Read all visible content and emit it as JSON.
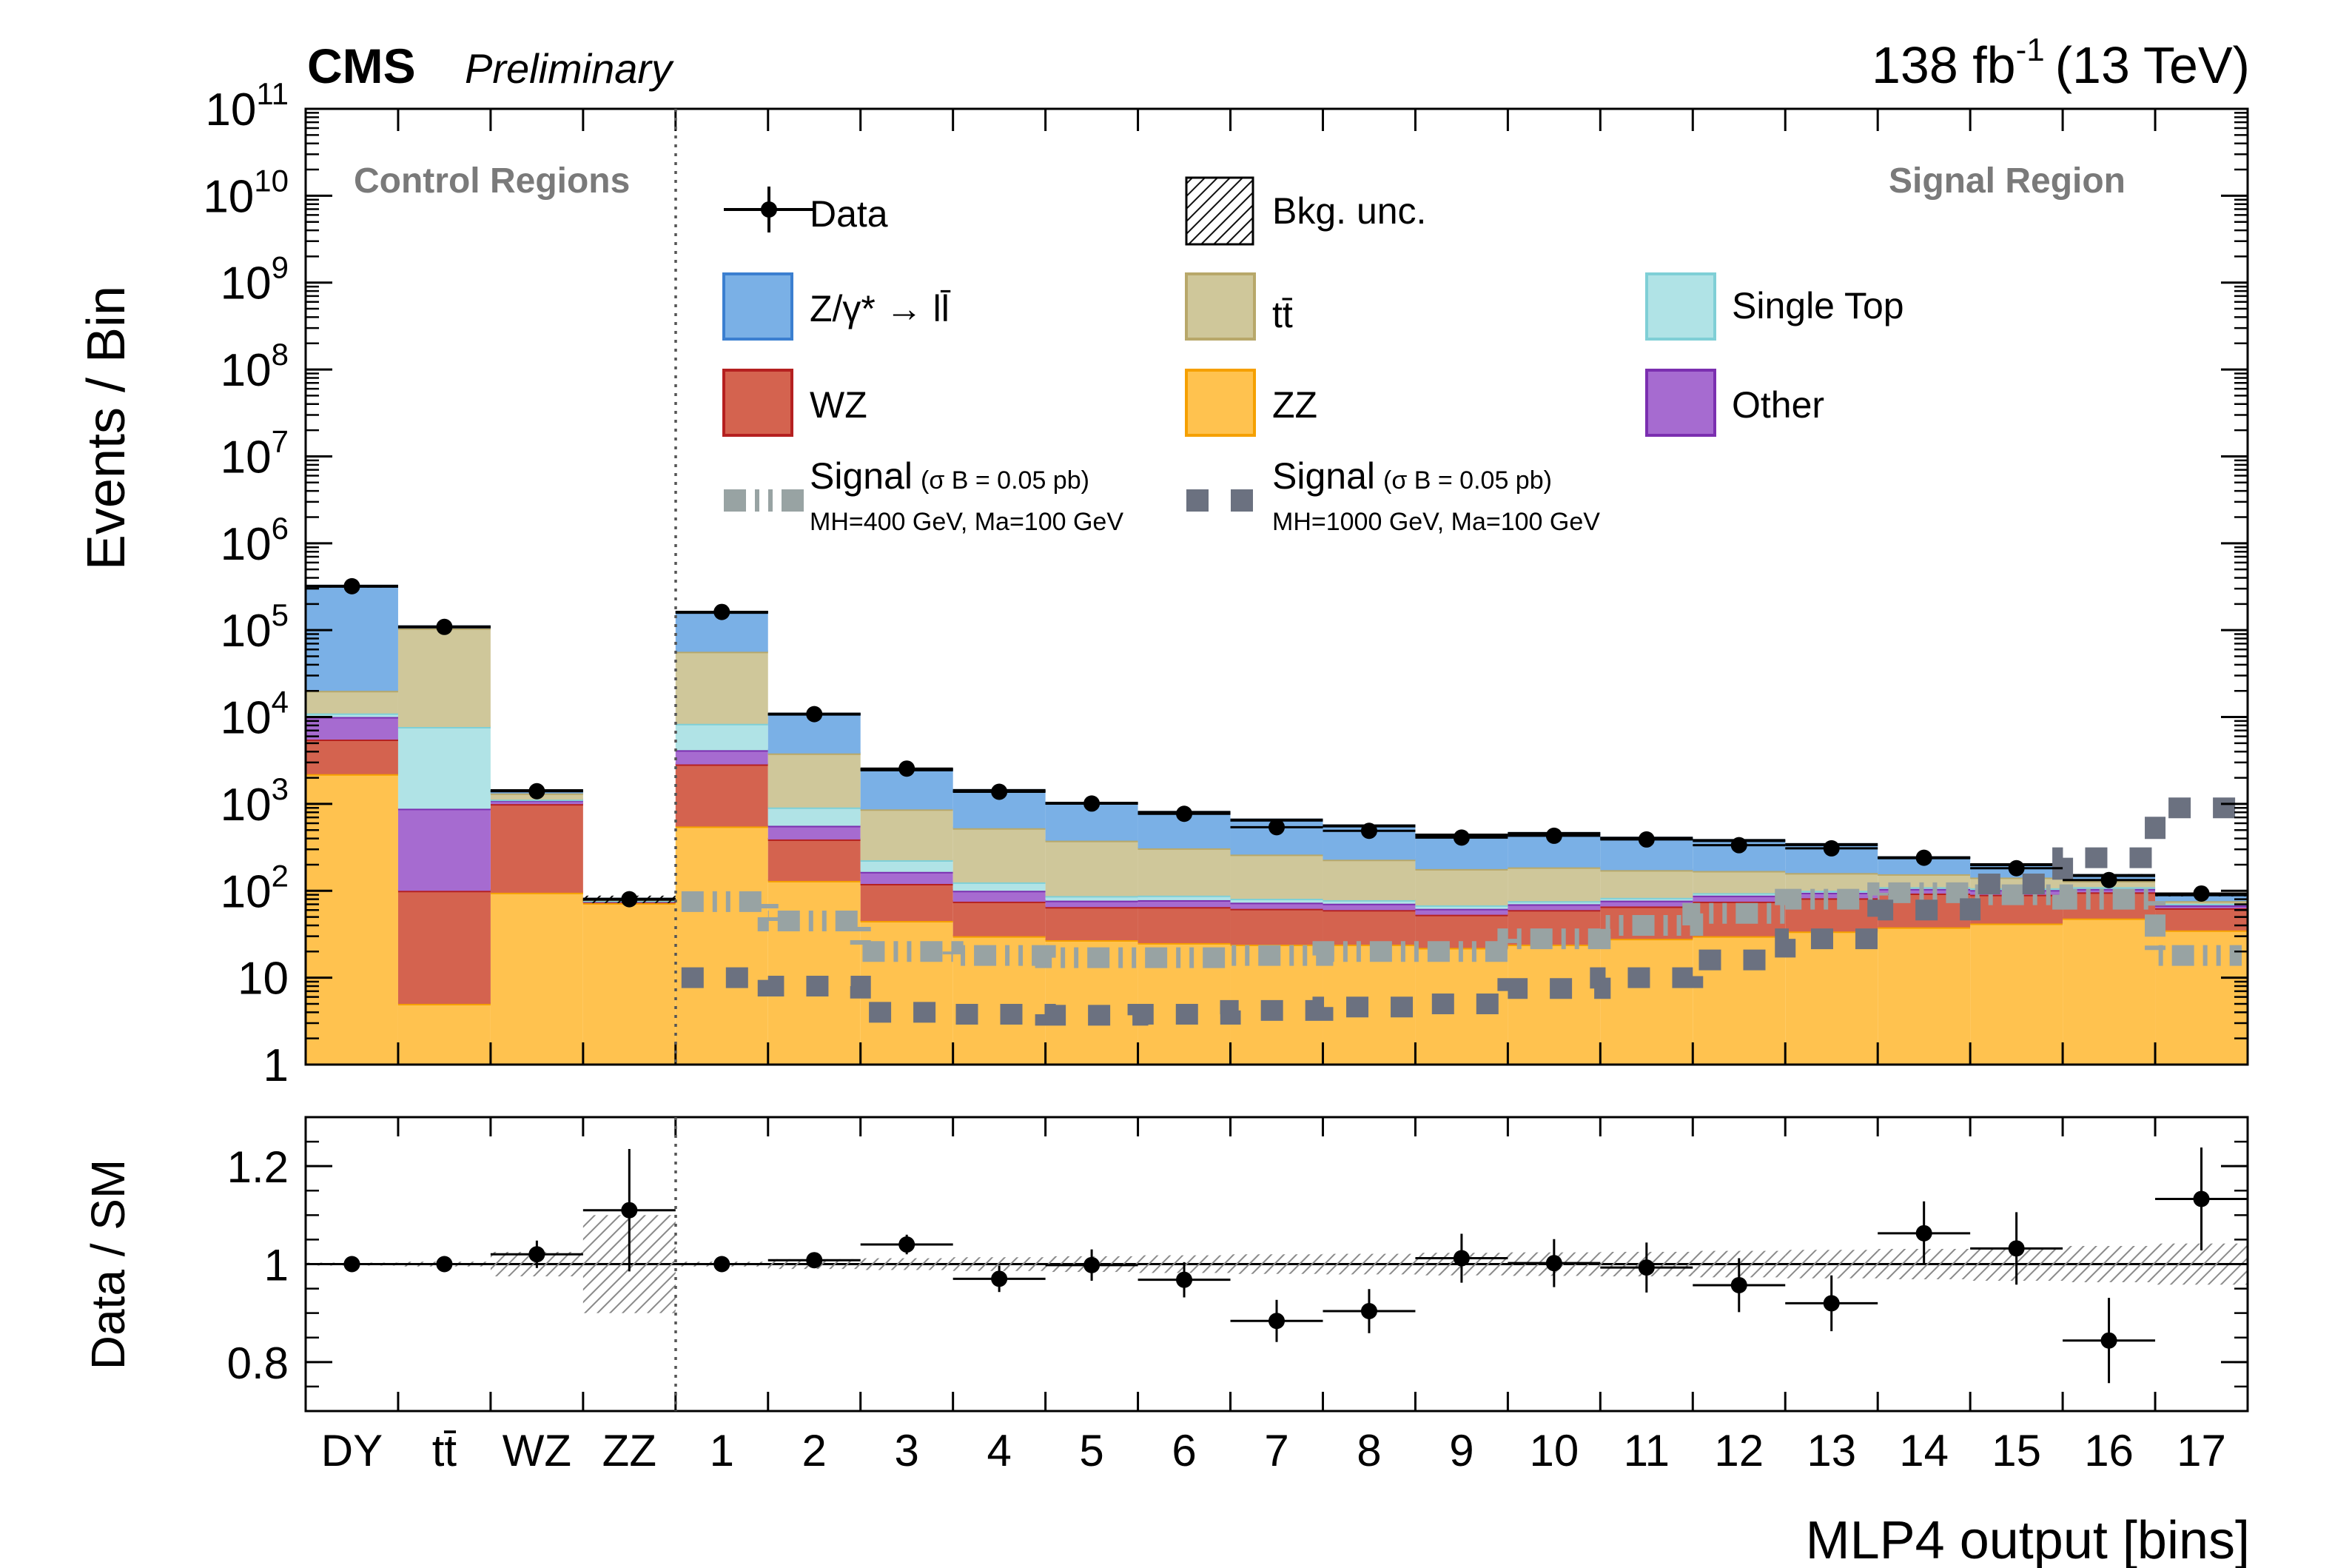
{
  "header": {
    "experiment": "CMS",
    "status": "Preliminary",
    "lumi": "138 fb",
    "lumi_sup": "-1",
    "energy": "(13 TeV)"
  },
  "regions": {
    "control": "Control Regions",
    "signal": "Signal Region"
  },
  "legend": {
    "data": "Data",
    "unc": "Bkg. unc.",
    "dy": "Z/γ* → ll̄",
    "tt": "tt̄",
    "st": "Single Top",
    "wz": "WZ",
    "zz": "ZZ",
    "other": "Other",
    "sig_word": "Signal",
    "sig_xsec": "(σ B = 0.05 pb)",
    "sig1_mass": "MH=400 GeV, Ma=100 GeV",
    "sig2_mass": "MH=1000 GeV, Ma=100 GeV"
  },
  "colors": {
    "dy": "#7ab0e6",
    "dy_line": "#3b7fd0",
    "tt": "#cfc79a",
    "tt_line": "#b8a86a",
    "st": "#b0e3e6",
    "st_line": "#7fcfd6",
    "wz": "#d4634f",
    "wz_line": "#b52020",
    "zz": "#ffc24f",
    "zz_line": "#f5a000",
    "other": "#a66bd0",
    "other_line": "#7b2fb0",
    "sig1": "#98a3a3",
    "sig2": "#6b7180"
  },
  "chart_data": {
    "type": "bar",
    "stacked": true,
    "y_scale": "log",
    "ylabel": "Events / Bin",
    "ratio_ylabel": "Data / SM",
    "xlabel": "MLP4 output [bins]",
    "ylim": [
      1,
      100000000000
    ],
    "ratio_ylim": [
      0.7,
      1.3
    ],
    "y_ticks": [
      {
        "label": "1",
        "value": 1
      },
      {
        "label": "10",
        "value": 10
      },
      {
        "label": "10",
        "sup": "2",
        "value": 100
      },
      {
        "label": "10",
        "sup": "3",
        "value": 1000
      },
      {
        "label": "10",
        "sup": "4",
        "value": 10000
      },
      {
        "label": "10",
        "sup": "5",
        "value": 100000
      },
      {
        "label": "10",
        "sup": "6",
        "value": 1000000
      },
      {
        "label": "10",
        "sup": "7",
        "value": 10000000
      },
      {
        "label": "10",
        "sup": "8",
        "value": 100000000
      },
      {
        "label": "10",
        "sup": "9",
        "value": 1000000000
      },
      {
        "label": "10",
        "sup": "10",
        "value": 10000000000
      },
      {
        "label": "10",
        "sup": "11",
        "value": 100000000000
      }
    ],
    "ratio_ticks": [
      {
        "label": "0.8",
        "value": 0.8
      },
      {
        "label": "1",
        "value": 1.0
      },
      {
        "label": "1.2",
        "value": 1.2
      }
    ],
    "categories": [
      "DY",
      "tt̄",
      "WZ",
      "ZZ",
      "1",
      "2",
      "3",
      "4",
      "5",
      "6",
      "7",
      "8",
      "9",
      "10",
      "11",
      "12",
      "13",
      "14",
      "15",
      "16",
      "17"
    ],
    "series": [
      {
        "key": "zz",
        "name": "ZZ",
        "values": [
          2200,
          5,
          95,
          72,
          550,
          130,
          45,
          30,
          27,
          25,
          24,
          24,
          22,
          24,
          28,
          30,
          34,
          38,
          42,
          48,
          35
        ]
      },
      {
        "key": "wz",
        "name": "WZ",
        "values": [
          3300,
          95,
          900,
          3,
          2300,
          260,
          75,
          45,
          38,
          40,
          38,
          36,
          31,
          36,
          38,
          45,
          48,
          55,
          48,
          48,
          28
        ]
      },
      {
        "key": "other",
        "name": "Other",
        "values": [
          4500,
          780,
          100,
          1,
          1300,
          170,
          45,
          25,
          12,
          13,
          11,
          11,
          9,
          10,
          11,
          13,
          13,
          12,
          12,
          9,
          5
        ]
      },
      {
        "key": "st",
        "name": "Single Top",
        "values": [
          1000,
          6800,
          25,
          1,
          4200,
          350,
          60,
          25,
          10,
          10,
          8,
          7,
          6,
          6,
          6,
          6,
          5,
          5,
          5,
          5,
          3
        ]
      },
      {
        "key": "tt",
        "name": "tt̄",
        "values": [
          9000,
          97000,
          200,
          2,
          48000,
          2900,
          640,
          400,
          290,
          220,
          180,
          150,
          110,
          110,
          90,
          75,
          60,
          45,
          35,
          20,
          5
        ]
      },
      {
        "key": "dy",
        "name": "Z/γ* → ll̄",
        "values": [
          300000,
          4320,
          100,
          1,
          104000,
          7000,
          1600,
          900,
          640,
          490,
          390,
          330,
          260,
          270,
          230,
          210,
          180,
          85,
          58,
          20,
          14
        ]
      }
    ],
    "data": [
      320000,
      109000,
      1400,
      80,
      162000,
      10800,
      2550,
      1380,
      1010,
      770,
      540,
      490,
      410,
      430,
      390,
      335,
      308,
      240,
      182,
      133,
      93
    ],
    "signal": [
      {
        "key": "sig1",
        "name": "Signal (σ B = 0.05 pb) MH=400 GeV, Ma=100 GeV",
        "values": [
          null,
          null,
          null,
          null,
          75,
          45,
          20,
          18,
          17,
          17,
          18,
          20,
          20,
          28,
          40,
          55,
          80,
          95,
          90,
          80,
          18
        ]
      },
      {
        "key": "sig2",
        "name": "Signal (σ B = 0.05 pb) MH=1000 GeV, Ma=100 GeV",
        "values": [
          null,
          null,
          null,
          null,
          10,
          8,
          4,
          3.8,
          3.7,
          3.8,
          4.2,
          4.6,
          5,
          7.5,
          10,
          16,
          28,
          60,
          120,
          240,
          900
        ]
      }
    ],
    "ratio": {
      "values": [
        1.0,
        1.0,
        1.02,
        1.11,
        1.0,
        1.008,
        1.04,
        0.97,
        0.998,
        0.968,
        0.884,
        0.904,
        1.012,
        1.002,
        0.993,
        0.957,
        0.92,
        1.063,
        1.032,
        0.844,
        1.133
      ],
      "err": [
        0.002,
        0.003,
        0.028,
        0.125,
        0.003,
        0.01,
        0.02,
        0.027,
        0.032,
        0.036,
        0.043,
        0.045,
        0.05,
        0.049,
        0.051,
        0.055,
        0.057,
        0.065,
        0.074,
        0.087,
        0.105
      ],
      "unc": [
        0.003,
        0.005,
        0.025,
        0.1,
        0.005,
        0.01,
        0.012,
        0.014,
        0.016,
        0.018,
        0.02,
        0.021,
        0.023,
        0.024,
        0.025,
        0.027,
        0.029,
        0.031,
        0.034,
        0.037,
        0.042
      ]
    }
  }
}
